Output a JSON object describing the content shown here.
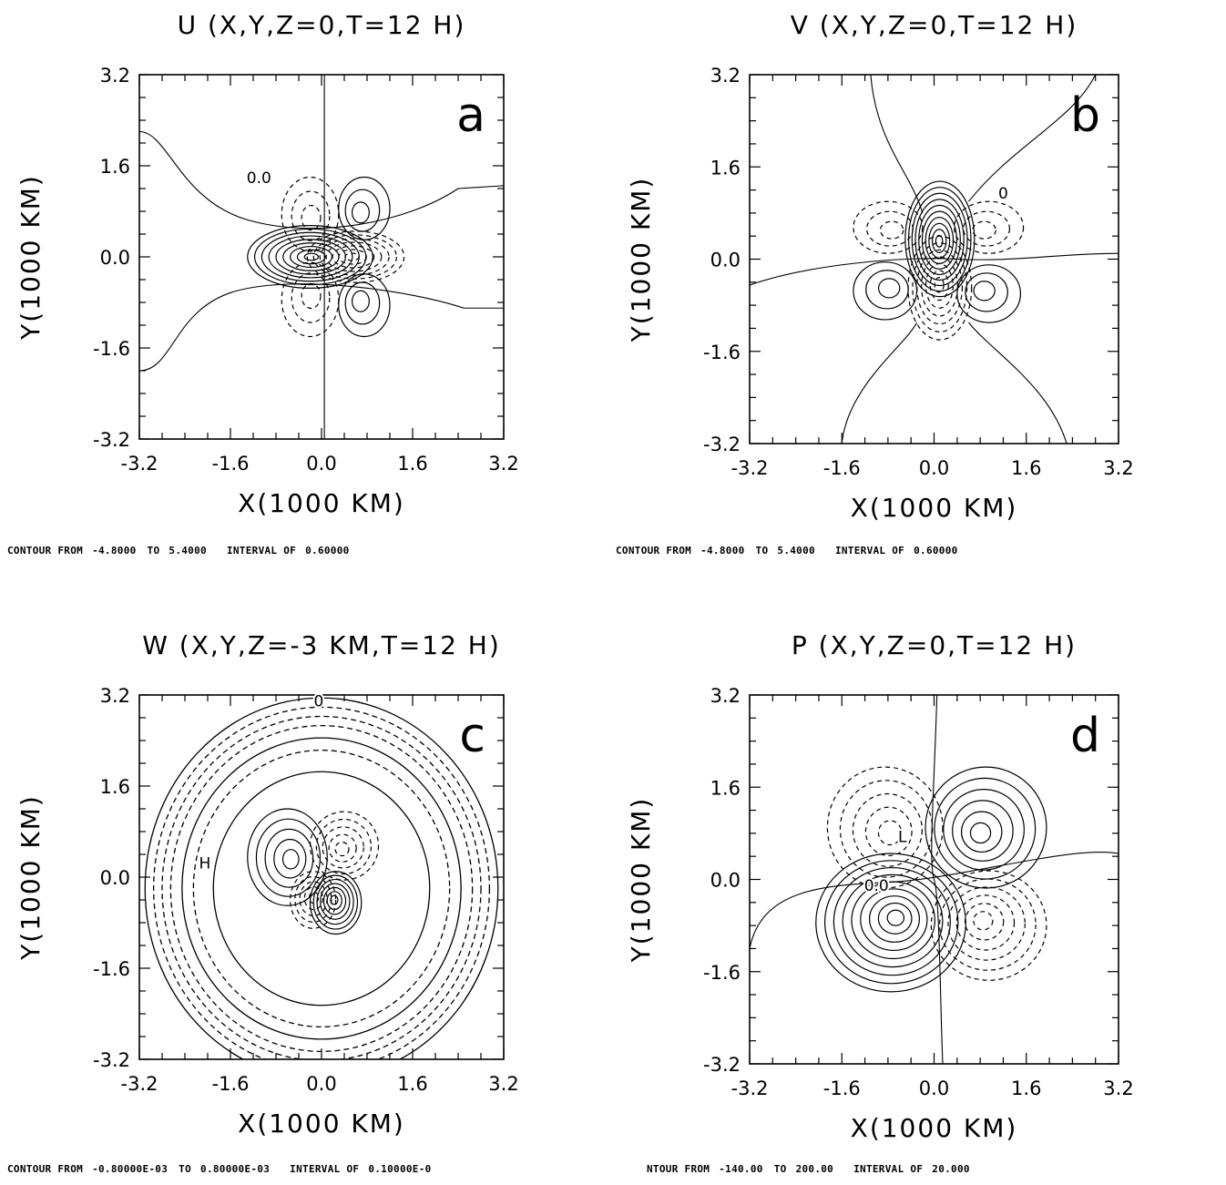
{
  "chart_data": [
    {
      "type": "contour",
      "panel": "a",
      "title": "U (X,Y,Z=0,T=12 H)",
      "xlabel": "X(1000 KM)",
      "ylabel": "Y(1000 KM)",
      "xlim": [
        -3.2,
        3.2
      ],
      "ylim": [
        -3.2,
        3.2
      ],
      "xticks": [
        "-3.2",
        "-1.6",
        "0.0",
        "1.6",
        "3.2"
      ],
      "yticks": [
        "-3.2",
        "-1.6",
        "0.0",
        "1.6",
        "3.2"
      ],
      "contour_from": "-4.8000",
      "contour_to": "5.4000",
      "contour_interval": "0.60000",
      "caption_from_label": "CONTOUR FROM",
      "caption_to_label": "TO",
      "caption_interval_label": "INTERVAL OF",
      "contour_labels": [
        "0.0"
      ],
      "lobes": [
        {
          "x": -0.2,
          "y": 0.0,
          "rx": 1.1,
          "ry": 0.55,
          "sign": 1,
          "n": 9
        },
        {
          "x": 0.6,
          "y": 0.0,
          "rx": 0.85,
          "ry": 0.45,
          "sign": -1,
          "n": 7
        },
        {
          "x": -0.2,
          "y": 0.75,
          "rx": 0.5,
          "ry": 0.65,
          "sign": -1,
          "n": 3
        },
        {
          "x": -0.2,
          "y": -0.75,
          "rx": 0.5,
          "ry": 0.65,
          "sign": -1,
          "n": 3
        },
        {
          "x": 0.75,
          "y": 0.85,
          "rx": 0.45,
          "ry": 0.55,
          "sign": 1,
          "n": 3
        },
        {
          "x": 0.75,
          "y": -0.85,
          "rx": 0.45,
          "ry": 0.55,
          "sign": 1,
          "n": 3
        }
      ]
    },
    {
      "type": "contour",
      "panel": "b",
      "title": "V (X,Y,Z=0,T=12 H)",
      "xlabel": "X(1000 KM)",
      "ylabel": "Y(1000 KM)",
      "xlim": [
        -3.2,
        3.2
      ],
      "ylim": [
        -3.2,
        3.2
      ],
      "xticks": [
        "-3.2",
        "-1.6",
        "0.0",
        "1.6",
        "3.2"
      ],
      "yticks": [
        "-3.2",
        "-1.6",
        "0.0",
        "1.6",
        "3.2"
      ],
      "contour_from": "-4.8000",
      "contour_to": "5.4000",
      "contour_interval": "0.60000",
      "caption_from_label": "CONTOUR FROM",
      "caption_to_label": "TO",
      "caption_interval_label": "INTERVAL OF",
      "contour_labels": [
        "0"
      ],
      "lobes": [
        {
          "x": 0.1,
          "y": 0.35,
          "rx": 0.6,
          "ry": 1.0,
          "sign": 1,
          "n": 10
        },
        {
          "x": 0.1,
          "y": -0.5,
          "rx": 0.55,
          "ry": 0.9,
          "sign": -1,
          "n": 7
        },
        {
          "x": -0.8,
          "y": 0.55,
          "rx": 0.6,
          "ry": 0.45,
          "sign": -1,
          "n": 3
        },
        {
          "x": 0.95,
          "y": 0.55,
          "rx": 0.6,
          "ry": 0.45,
          "sign": -1,
          "n": 3
        },
        {
          "x": -0.85,
          "y": -0.55,
          "rx": 0.55,
          "ry": 0.5,
          "sign": 1,
          "n": 3
        },
        {
          "x": 0.95,
          "y": -0.6,
          "rx": 0.55,
          "ry": 0.5,
          "sign": 1,
          "n": 3
        }
      ]
    },
    {
      "type": "contour",
      "panel": "c",
      "title": "W (X,Y,Z=-3 KM,T=12 H)",
      "xlabel": "X(1000 KM)",
      "ylabel": "Y(1000 KM)",
      "xlim": [
        -3.2,
        3.2
      ],
      "ylim": [
        -3.2,
        3.2
      ],
      "xticks": [
        "-3.2",
        "-1.6",
        "0.0",
        "1.6",
        "3.2"
      ],
      "yticks": [
        "-3.2",
        "-1.6",
        "0.0",
        "1.6",
        "3.2"
      ],
      "contour_from": "-0.80000E-03",
      "contour_to": "0.80000E-03",
      "contour_interval": "0.10000E-0",
      "caption_from_label": "CONTOUR FROM",
      "caption_to_label": "TO",
      "caption_interval_label": "INTERVAL OF",
      "contour_labels": [
        "0",
        "H"
      ],
      "lobes": [
        {
          "x": -0.6,
          "y": 0.35,
          "rx": 0.7,
          "ry": 0.85,
          "sign": 1,
          "n": 5
        },
        {
          "x": 0.4,
          "y": 0.55,
          "rx": 0.6,
          "ry": 0.6,
          "sign": -1,
          "n": 5
        },
        {
          "x": 0.25,
          "y": -0.45,
          "rx": 0.45,
          "ry": 0.55,
          "sign": 1,
          "n": 7
        },
        {
          "x": -0.15,
          "y": -0.4,
          "rx": 0.4,
          "ry": 0.5,
          "sign": -1,
          "n": 5
        }
      ],
      "rings": [
        {
          "r": 1.9,
          "sign": 1
        },
        {
          "r": 2.25,
          "sign": -1
        },
        {
          "r": 2.45,
          "sign": 1
        },
        {
          "r": 2.65,
          "sign": -1
        },
        {
          "r": 2.8,
          "sign": -1
        },
        {
          "r": 2.95,
          "sign": -1
        },
        {
          "r": 3.1,
          "sign": 1
        }
      ]
    },
    {
      "type": "contour",
      "panel": "d",
      "title": "P (X,Y,Z=0,T=12 H)",
      "xlabel": "X(1000 KM)",
      "ylabel": "Y(1000 KM)",
      "xlim": [
        -3.2,
        3.2
      ],
      "ylim": [
        -3.2,
        3.2
      ],
      "xticks": [
        "-3.2",
        "-1.6",
        "0.0",
        "1.6",
        "3.2"
      ],
      "yticks": [
        "-3.2",
        "-1.6",
        "0.0",
        "1.6",
        "3.2"
      ],
      "contour_from": "-140.00",
      "contour_to": "200.00",
      "contour_interval": "20.000",
      "caption_from_label": "NTOUR FROM",
      "caption_to_label": "TO",
      "caption_interval_label": "INTERVAL OF",
      "contour_labels": [
        "0.0",
        "L"
      ],
      "lobes": [
        {
          "x": -0.75,
          "y": -0.75,
          "rx": 1.3,
          "ry": 1.2,
          "sign": 1,
          "n": 9
        },
        {
          "x": 0.9,
          "y": 0.9,
          "rx": 1.05,
          "ry": 1.05,
          "sign": 1,
          "n": 6
        },
        {
          "x": -0.85,
          "y": 0.9,
          "rx": 1.0,
          "ry": 1.05,
          "sign": -1,
          "n": 5
        },
        {
          "x": 0.95,
          "y": -0.8,
          "rx": 1.0,
          "ry": 0.95,
          "sign": -1,
          "n": 6
        }
      ]
    }
  ]
}
